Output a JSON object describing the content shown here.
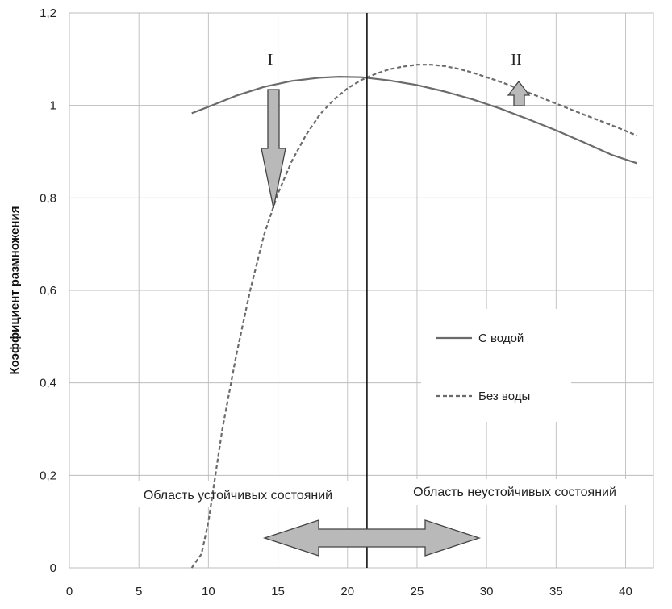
{
  "chart_data": {
    "type": "line",
    "title": "",
    "xlabel": "",
    "ylabel": "Коэффициент размножения",
    "xlim": [
      0,
      42
    ],
    "ylim": [
      0,
      1.2
    ],
    "x_ticks": [
      "0",
      "5",
      "10",
      "15",
      "20",
      "25",
      "30",
      "35",
      "40"
    ],
    "y_ticks": [
      "0",
      "0,2",
      "0,4",
      "0,6",
      "0,8",
      "1",
      "1,2"
    ],
    "grid": true,
    "legend_position": "center-right",
    "series": [
      {
        "name": "С водой",
        "style": "solid",
        "color": "#6b6b6b",
        "points": [
          [
            8.8,
            0.983
          ],
          [
            10,
            0.997
          ],
          [
            12,
            1.021
          ],
          [
            14,
            1.04
          ],
          [
            16,
            1.053
          ],
          [
            18,
            1.06
          ],
          [
            19.4,
            1.062
          ],
          [
            21,
            1.061
          ],
          [
            23,
            1.054
          ],
          [
            25,
            1.044
          ],
          [
            27,
            1.03
          ],
          [
            29,
            1.013
          ],
          [
            31,
            0.993
          ],
          [
            33,
            0.97
          ],
          [
            35,
            0.946
          ],
          [
            37,
            0.92
          ],
          [
            39,
            0.893
          ],
          [
            40.8,
            0.875
          ]
        ]
      },
      {
        "name": "Без воды",
        "style": "dashed",
        "color": "#6b6b6b",
        "points": [
          [
            8.8,
            0.0
          ],
          [
            9.5,
            0.03
          ],
          [
            10,
            0.1
          ],
          [
            10.5,
            0.2
          ],
          [
            11,
            0.3
          ],
          [
            12,
            0.46
          ],
          [
            13,
            0.6
          ],
          [
            14,
            0.72
          ],
          [
            15,
            0.81
          ],
          [
            16,
            0.88
          ],
          [
            17,
            0.935
          ],
          [
            18,
            0.98
          ],
          [
            19,
            1.012
          ],
          [
            20,
            1.037
          ],
          [
            21,
            1.055
          ],
          [
            22,
            1.068
          ],
          [
            23,
            1.078
          ],
          [
            24,
            1.084
          ],
          [
            25,
            1.088
          ],
          [
            26,
            1.088
          ],
          [
            27,
            1.085
          ],
          [
            28,
            1.079
          ],
          [
            29,
            1.071
          ],
          [
            30,
            1.061
          ],
          [
            31,
            1.051
          ],
          [
            33,
            1.028
          ],
          [
            35,
            1.004
          ],
          [
            37,
            0.98
          ],
          [
            39,
            0.957
          ],
          [
            40.8,
            0.935
          ]
        ]
      }
    ],
    "vertical_line_x": 21.4,
    "annotations": {
      "marker_I": "I",
      "marker_II": "II",
      "stable_region": "Область устойчивых состояний",
      "unstable_region": "Область неустойчивых состояний"
    }
  }
}
